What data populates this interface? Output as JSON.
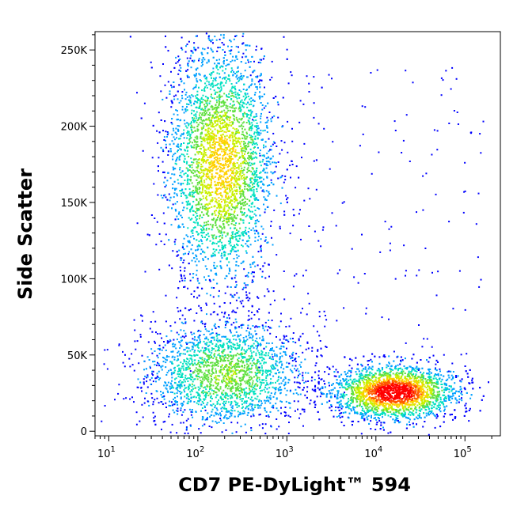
{
  "chart_data": {
    "type": "scatter",
    "xlabel": "CD7 PE-DyLight™ 594",
    "ylabel": "Side Scatter",
    "x_scale": "log",
    "xlim": [
      7,
      250000
    ],
    "ylim": [
      -3000,
      262000
    ],
    "x_ticks": [
      {
        "base": "10",
        "exp": "1",
        "value": 10
      },
      {
        "base": "10",
        "exp": "2",
        "value": 100
      },
      {
        "base": "10",
        "exp": "3",
        "value": 1000
      },
      {
        "base": "10",
        "exp": "4",
        "value": 10000
      },
      {
        "base": "10",
        "exp": "5",
        "value": 100000
      }
    ],
    "y_ticks": [
      {
        "label": "0",
        "value": 0
      },
      {
        "label": "50K",
        "value": 50000
      },
      {
        "label": "100K",
        "value": 100000
      },
      {
        "label": "150K",
        "value": 150000
      },
      {
        "label": "200K",
        "value": 200000
      },
      {
        "label": "250K",
        "value": 250000
      }
    ],
    "colormap": [
      "#0000ff",
      "#00a0ff",
      "#00e0c0",
      "#60e040",
      "#c8f000",
      "#ffd000",
      "#ff5a00",
      "#ff0000"
    ],
    "populations": [
      {
        "name": "",
        "x_center_log10": 2.25,
        "y_center": 175000,
        "x_spread_log10": 0.3,
        "y_spread": 40000,
        "count": 4200,
        "peak": 0.65
      },
      {
        "name": "",
        "x_center_log10": 2.3,
        "y_center": 38000,
        "x_spread_log10": 0.45,
        "y_spread": 18000,
        "count": 2200,
        "peak": 0.45
      },
      {
        "name": "",
        "x_center_log10": 4.2,
        "y_center": 26000,
        "x_spread_log10": 0.35,
        "y_spread": 9000,
        "count": 3500,
        "peak": 1.0
      }
    ]
  }
}
